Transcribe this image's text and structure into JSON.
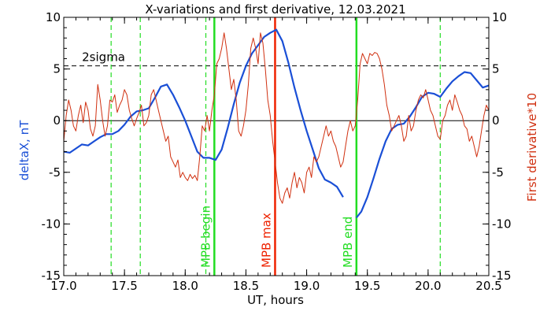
{
  "chart_data": {
    "type": "line",
    "title": "X-variations and first derivative, 12.03.2021",
    "xlabel": "UT, hours",
    "ylabel_left": "deltaX, nT",
    "ylabel_right": "First derivative*10",
    "xlim": [
      17.0,
      20.5
    ],
    "ylim_left": [
      -15,
      10
    ],
    "ylim_right": [
      -15,
      10
    ],
    "xticks": [
      "17.0",
      "17.5",
      "18.0",
      "18.5",
      "19.0",
      "19.5",
      "20.0",
      "20.5"
    ],
    "yticks_left": [
      "-15",
      "-10",
      "-5",
      "0",
      "5",
      "10"
    ],
    "yticks_right": [
      "-15",
      "-10",
      "-5",
      "0",
      "5",
      "10"
    ],
    "colors": {
      "deltaX": "#1a4fd6",
      "derivative": "#d03010",
      "marker_green": "#22dd22",
      "marker_red": "#ee2200",
      "axes": "#000000"
    },
    "threshold": {
      "label": "2sigma",
      "value": 5.3
    },
    "zero_line": 0,
    "markers": [
      {
        "label": "MPB begin",
        "x": 18.24,
        "color": "green",
        "style": "solid"
      },
      {
        "label": "MPB max",
        "x": 18.74,
        "color": "red",
        "style": "solid"
      },
      {
        "label": "MPB end",
        "x": 19.41,
        "color": "green",
        "style": "solid"
      },
      {
        "label": "",
        "x": 17.39,
        "color": "green",
        "style": "dashed"
      },
      {
        "label": "",
        "x": 17.63,
        "color": "green",
        "style": "dashed"
      },
      {
        "label": "",
        "x": 18.17,
        "color": "green",
        "style": "dashed"
      },
      {
        "label": "",
        "x": 20.1,
        "color": "green",
        "style": "dashed"
      }
    ],
    "series": [
      {
        "key": "deltaX",
        "axis": "left",
        "segments": [
          {
            "x": [
              17.0,
              17.05,
              17.1,
              17.15,
              17.2,
              17.25,
              17.3,
              17.35,
              17.4,
              17.45,
              17.5,
              17.55,
              17.6,
              17.65,
              17.7,
              17.75,
              17.8,
              17.85,
              17.9,
              17.95,
              18.0,
              18.05,
              18.1,
              18.15,
              18.2,
              18.25,
              18.3,
              18.35,
              18.4,
              18.45,
              18.5,
              18.55,
              18.6,
              18.65,
              18.7,
              18.75,
              18.8,
              18.85,
              18.9,
              18.95,
              19.0,
              19.05,
              19.1,
              19.15,
              19.2,
              19.25,
              19.3
            ],
            "y": [
              -3.0,
              -3.1,
              -2.7,
              -2.3,
              -2.4,
              -2.0,
              -1.6,
              -1.3,
              -1.3,
              -1.0,
              -0.4,
              0.4,
              0.9,
              1.0,
              1.2,
              2.2,
              3.3,
              3.5,
              2.5,
              1.3,
              0.0,
              -1.5,
              -3.0,
              -3.6,
              -3.6,
              -3.8,
              -2.8,
              -0.7,
              1.6,
              3.7,
              5.3,
              6.5,
              7.3,
              8.1,
              8.5,
              8.8,
              7.7,
              5.6,
              3.2,
              1.0,
              -1.0,
              -2.8,
              -4.6,
              -5.7,
              -6.0,
              -6.4,
              -7.4
            ]
          },
          {
            "x": [
              19.41,
              19.45,
              19.5,
              19.55,
              19.6,
              19.65,
              19.7,
              19.75,
              19.8,
              19.85,
              19.9,
              19.95,
              20.0,
              20.05,
              20.1,
              20.15,
              20.2,
              20.25,
              20.3,
              20.35,
              20.4,
              20.45,
              20.5
            ],
            "y": [
              -9.4,
              -8.8,
              -7.4,
              -5.6,
              -3.7,
              -2.0,
              -0.8,
              -0.4,
              -0.3,
              0.4,
              1.3,
              2.3,
              2.7,
              2.6,
              2.3,
              3.1,
              3.8,
              4.3,
              4.7,
              4.6,
              3.9,
              3.2,
              3.4
            ]
          }
        ]
      },
      {
        "key": "derivative",
        "axis": "right",
        "segments": [
          {
            "x": [
              17.0,
              17.02,
              17.04,
              17.06,
              17.08,
              17.1,
              17.12,
              17.14,
              17.16,
              17.18,
              17.2,
              17.22,
              17.24,
              17.26,
              17.28,
              17.3,
              17.32,
              17.34,
              17.36,
              17.38,
              17.4,
              17.42,
              17.44,
              17.46,
              17.48,
              17.5,
              17.52,
              17.54,
              17.56,
              17.58,
              17.6,
              17.62,
              17.64,
              17.66,
              17.68,
              17.7,
              17.72,
              17.74,
              17.76,
              17.78,
              17.8,
              17.82,
              17.84,
              17.86,
              17.88,
              17.9,
              17.92,
              17.94,
              17.96,
              17.98,
              18.0,
              18.02,
              18.04,
              18.06,
              18.08,
              18.1,
              18.12,
              18.14,
              18.16,
              18.18,
              18.2,
              18.22,
              18.24,
              18.26,
              18.28,
              18.3,
              18.32,
              18.34,
              18.36,
              18.38,
              18.4,
              18.42,
              18.44,
              18.46,
              18.48,
              18.5,
              18.52,
              18.54,
              18.56,
              18.58,
              18.6,
              18.62,
              18.64,
              18.66,
              18.68,
              18.7,
              18.72,
              18.74,
              18.76,
              18.78,
              18.8,
              18.82,
              18.84,
              18.86,
              18.88,
              18.9,
              18.92,
              18.94,
              18.96,
              18.98,
              19.0,
              19.02,
              19.04,
              19.06,
              19.08,
              19.1,
              19.12,
              19.14,
              19.16,
              19.18,
              19.2,
              19.22,
              19.24,
              19.26,
              19.28,
              19.3,
              19.32,
              19.34,
              19.36,
              19.38,
              19.4,
              19.42,
              19.44,
              19.46,
              19.48,
              19.5,
              19.52,
              19.54,
              19.56,
              19.58,
              19.6,
              19.62,
              19.64,
              19.66,
              19.68,
              19.7,
              19.72,
              19.74,
              19.76,
              19.78,
              19.8,
              19.82,
              19.84,
              19.86,
              19.88,
              19.9,
              19.92,
              19.94,
              19.96,
              19.98,
              20.0,
              20.02,
              20.04,
              20.06,
              20.08,
              20.1,
              20.12,
              20.14,
              20.16,
              20.18,
              20.2,
              20.22,
              20.24,
              20.26,
              20.28,
              20.3,
              20.32,
              20.34,
              20.36,
              20.38,
              20.4,
              20.42,
              20.44,
              20.46,
              20.48,
              20.5
            ],
            "y": [
              -2.0,
              0.5,
              2.0,
              1.0,
              -0.5,
              -1.0,
              0.5,
              1.5,
              -0.2,
              1.8,
              1.0,
              -0.8,
              -1.5,
              -0.5,
              3.5,
              2.0,
              0.0,
              -1.5,
              -0.5,
              2.0,
              1.8,
              2.5,
              0.8,
              1.5,
              2.0,
              3.0,
              2.5,
              1.0,
              0.2,
              -0.5,
              0.2,
              0.8,
              1.5,
              -0.5,
              -0.2,
              0.5,
              2.5,
              3.0,
              2.0,
              1.0,
              0.0,
              -1.0,
              -2.0,
              -1.5,
              -3.5,
              -4.0,
              -4.5,
              -3.8,
              -5.5,
              -5.0,
              -5.5,
              -5.8,
              -5.2,
              -5.6,
              -5.3,
              -5.8,
              -3.5,
              -0.5,
              -1.0,
              0.5,
              -1.0,
              1.0,
              2.5,
              5.5,
              6.0,
              7.0,
              8.5,
              7.0,
              5.0,
              3.0,
              4.0,
              2.0,
              -1.0,
              -1.5,
              -0.5,
              1.0,
              3.5,
              7.0,
              8.0,
              7.0,
              5.5,
              8.5,
              7.5,
              5.0,
              2.0,
              0.5,
              -2.0,
              -4.0,
              -6.0,
              -7.5,
              -8.0,
              -7.0,
              -6.5,
              -7.5,
              -6.0,
              -5.0,
              -6.5,
              -5.5,
              -6.0,
              -7.0,
              -5.0,
              -4.5,
              -5.5,
              -3.5,
              -4.0,
              -3.5,
              -2.5,
              -1.5,
              -0.5,
              -1.5,
              -1.0,
              -2.0,
              -2.5,
              -3.5,
              -4.5,
              -4.0,
              -2.5,
              -1.0,
              0.0,
              -1.0,
              -0.5,
              2.0,
              5.5,
              6.5,
              6.0,
              5.5,
              6.5,
              6.3,
              6.6,
              6.5,
              6.0,
              5.0,
              3.5,
              1.5,
              0.5,
              -1.0,
              -0.5,
              0.0,
              0.5,
              -0.5,
              -2.0,
              -1.5,
              0.5,
              -1.0,
              -0.5,
              1.0,
              2.0,
              2.5,
              2.2,
              3.0,
              2.0,
              1.0,
              0.5,
              -0.5,
              -1.5,
              -1.8,
              0.0,
              0.5,
              1.5,
              2.0,
              1.0,
              2.5,
              1.8,
              1.0,
              0.5,
              -0.5,
              -0.8,
              -2.0,
              -1.5,
              -2.5,
              -3.5,
              -2.5,
              -1.0,
              0.5,
              1.5,
              1.0
            ]
          }
        ]
      }
    ]
  }
}
